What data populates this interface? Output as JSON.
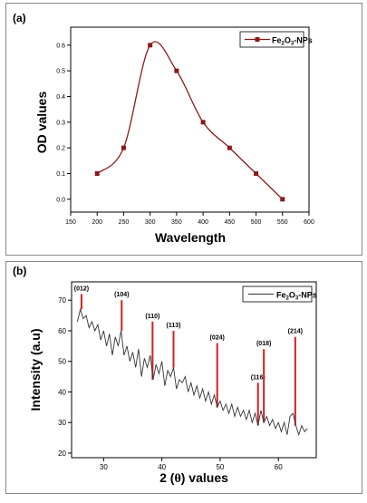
{
  "chart_data": [
    {
      "panel_label": "(a)",
      "type": "line",
      "x": [
        200,
        250,
        300,
        350,
        400,
        450,
        500,
        550
      ],
      "series": [
        {
          "name": "Fe2O3-NPs",
          "legend_main": "Fe",
          "legend_sub1": "2",
          "legend_mid": "O",
          "legend_sub2": "3",
          "legend_tail": "-NPs",
          "values": [
            0.1,
            0.2,
            0.6,
            0.5,
            0.3,
            0.2,
            0.1,
            0.0
          ],
          "color": "#8B1A1A"
        }
      ],
      "xlabel": "Wavelength",
      "ylabel": "OD values",
      "xlim": [
        150,
        600
      ],
      "ylim": [
        -0.05,
        0.67
      ],
      "xticks": [
        150,
        200,
        250,
        300,
        350,
        400,
        450,
        500,
        550,
        600
      ],
      "yticks": [
        0.0,
        0.1,
        0.2,
        0.3,
        0.4,
        0.5,
        0.6
      ],
      "ytick_labels": [
        "0.0",
        "0.1",
        "0.2",
        "0.3",
        "0.4",
        "0.5",
        "0.6"
      ],
      "legend_position": "top-right",
      "grid": false
    },
    {
      "panel_label": "(b)",
      "type": "line",
      "series": [
        {
          "name": "Fe2O3-NPs",
          "legend_main": "Fe",
          "legend_sub1": "2",
          "legend_mid": "O",
          "legend_sub2": "3",
          "legend_tail": "-NPs",
          "color": "#333333",
          "x": [
            25.5,
            26,
            26.5,
            27,
            27.5,
            28,
            28.5,
            29,
            29.5,
            30,
            30.5,
            31,
            31.5,
            32,
            32.5,
            33,
            33.5,
            34,
            34.5,
            35,
            35.5,
            36,
            36.5,
            37,
            37.5,
            38,
            38.5,
            39,
            39.5,
            40,
            40.5,
            41,
            41.5,
            42,
            42.5,
            43,
            43.5,
            44,
            44.5,
            45,
            45.5,
            46,
            46.5,
            47,
            47.5,
            48,
            48.5,
            49,
            49.5,
            50,
            50.5,
            51,
            51.5,
            52,
            52.5,
            53,
            53.5,
            54,
            54.5,
            55,
            55.5,
            56,
            56.5,
            57,
            57.5,
            58,
            58.5,
            59,
            59.5,
            60,
            60.5,
            61,
            61.5,
            62,
            62.5,
            63,
            63.5,
            64,
            64.5,
            65
          ],
          "values": [
            63,
            67,
            64,
            65,
            61,
            63,
            60,
            62,
            57,
            60,
            55,
            59,
            52,
            58,
            55,
            60,
            52,
            55,
            50,
            53,
            48,
            54,
            45,
            51,
            48,
            52,
            44,
            49,
            46,
            50,
            42,
            47,
            45,
            48,
            41,
            44,
            43,
            45,
            40,
            43,
            39,
            42,
            38,
            41,
            37,
            40,
            36,
            39,
            35,
            37,
            34,
            36,
            33,
            36,
            32,
            35,
            32,
            34,
            31,
            34,
            30,
            33,
            29,
            34,
            30,
            32,
            29,
            31,
            28,
            30,
            27,
            30,
            26,
            32,
            33,
            29,
            26,
            29,
            27,
            28
          ]
        }
      ],
      "reference_peaks": [
        {
          "x": 26.2,
          "top": 72,
          "label": "(012)"
        },
        {
          "x": 33.1,
          "top": 70,
          "label": "(104)"
        },
        {
          "x": 38.4,
          "top": 63,
          "label": "(110)"
        },
        {
          "x": 42.0,
          "top": 60,
          "label": "(113)"
        },
        {
          "x": 49.5,
          "top": 56,
          "label": "(024)"
        },
        {
          "x": 56.5,
          "top": 43,
          "label": "(116)"
        },
        {
          "x": 57.5,
          "top": 54,
          "label": "(018)"
        },
        {
          "x": 62.9,
          "top": 58,
          "label": "(214)"
        }
      ],
      "peak_color": "#D42020",
      "xlabel_pre": "2 (",
      "xlabel_theta": "θ",
      "xlabel_post": ") values",
      "ylabel": "Intensity (a.u)",
      "xlim": [
        24.5,
        66.5
      ],
      "ylim": [
        18.5,
        76
      ],
      "xticks": [
        30,
        40,
        50,
        60
      ],
      "yticks": [
        20,
        30,
        40,
        50,
        60,
        70
      ],
      "legend_position": "top-right",
      "grid": false
    }
  ]
}
